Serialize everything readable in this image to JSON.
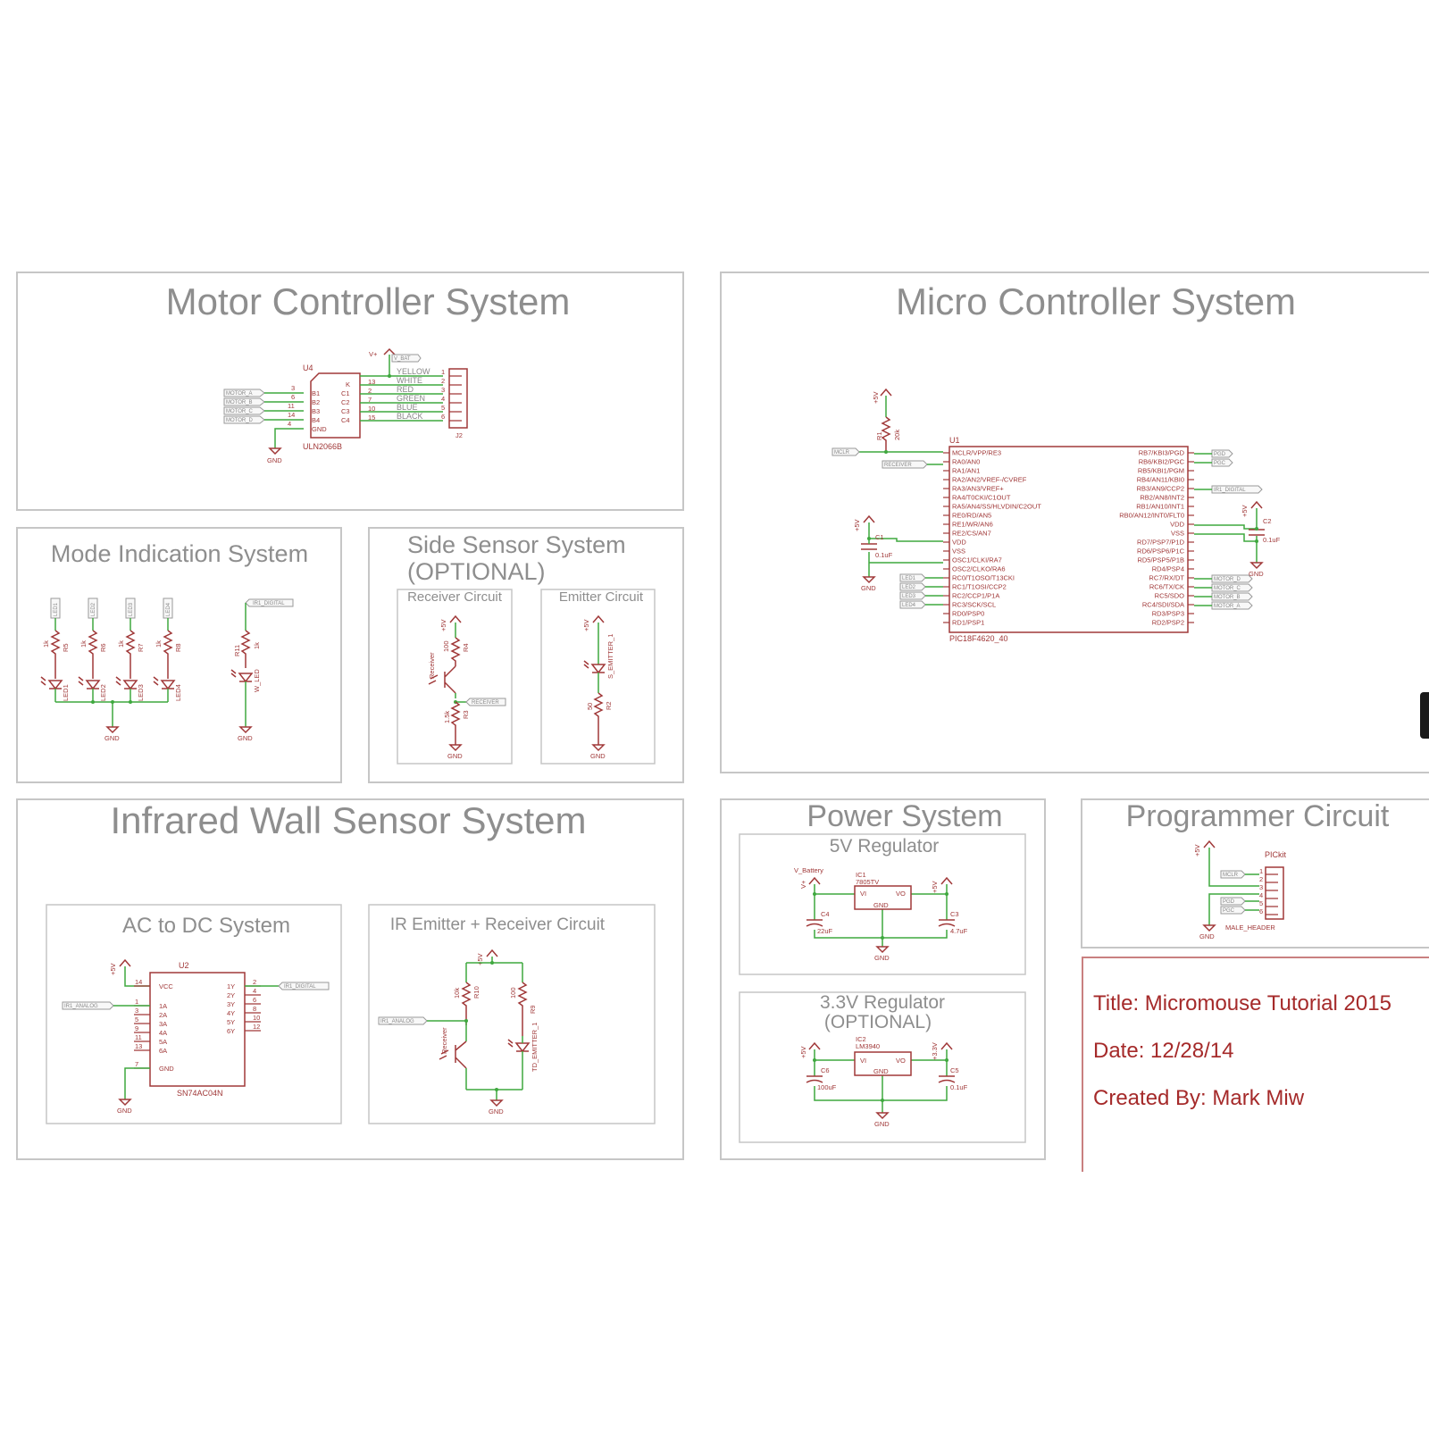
{
  "sections": {
    "motor": "Motor Controller System",
    "micro": "Micro Controller System",
    "mode": "Mode Indication System",
    "side_line1": "Side Sensor System",
    "side_line2": "(OPTIONAL)",
    "side_receiver": "Receiver Circuit",
    "side_emitter": "Emitter Circuit",
    "ir": "Infrared Wall Sensor System",
    "acdc": "AC to DC System",
    "ir_circuit": "IR Emitter + Receiver Circuit",
    "power": "Power System",
    "reg5": "5V Regulator",
    "reg33_line1": "3.3V Regulator",
    "reg33_line2": "(OPTIONAL)",
    "programmer": "Programmer Circuit"
  },
  "info": {
    "title": "Title: Micromouse Tutorial 2015",
    "date": "Date: 12/28/14",
    "author": "Created By: Mark Miw"
  },
  "motor": {
    "ref": "U4",
    "part": "ULN2066B",
    "conn": "J2",
    "vsup": "V+",
    "vflag": "V_BAT",
    "gnd": "GND",
    "inputs": [
      "MOTOR_A",
      "MOTOR_B",
      "MOTOR_C",
      "MOTOR_D"
    ],
    "in_pins": [
      "B1",
      "B2",
      "B3",
      "B4",
      "GND"
    ],
    "out_pins": [
      "K",
      "C1",
      "C2",
      "C3",
      "C4"
    ],
    "wires": [
      "YELLOW",
      "WHITE",
      "RED",
      "GREEN",
      "BLUE",
      "BLACK"
    ],
    "pin_nums_left": [
      "3",
      "6",
      "11",
      "14",
      "4"
    ],
    "pin_nums_right": [
      "13",
      "2",
      "7",
      "10",
      "15"
    ],
    "conn_nums": [
      "1",
      "2",
      "3",
      "4",
      "5",
      "6"
    ]
  },
  "micro": {
    "ref": "U1",
    "part": "PIC18F4620_40",
    "r1_ref": "R1",
    "r1_val": "20k",
    "vcc": "+5V",
    "c1_ref": "C1",
    "c1_val": "0.1uF",
    "c2_ref": "C2",
    "c2_val": "0.1uF",
    "gnd": "GND",
    "left_pins": [
      "MCLR/VPP/RE3",
      "RA0/AN0",
      "RA1/AN1",
      "RA2/AN2/VREF-/CVREF",
      "RA3/AN3/VREF+",
      "RA4/T0CKI/C1OUT",
      "RA5/AN4/SS/HLVDIN/C2OUT",
      "RE0/RD/AN5",
      "RE1/WR/AN6",
      "RE2/CS/AN7",
      "VDD",
      "VSS",
      "OSC1/CLKI/RA7",
      "OSC2/CLKO/RA6",
      "RC0/T1OSO/T13CKI",
      "RC1/T1OSI/CCP2",
      "RC2/CCP1/P1A",
      "RC3/SCK/SCL",
      "RD0/PSP0",
      "RD1/PSP1"
    ],
    "right_pins": [
      "RB7/KBI3/PGD",
      "RB6/KBI2/PGC",
      "RB5/KBI1/PGM",
      "RB4/AN11/KBI0",
      "RB3/AN9/CCP2",
      "RB2/AN8/INT2",
      "RB1/AN10/INT1",
      "RB0/AN12/INT0/FLT0",
      "VDD",
      "VSS",
      "RD7/PSP7/P1D",
      "RD6/PSP6/P1C",
      "RD5/PSP5/P1B",
      "RD4/PSP4",
      "RC7/RX/DT",
      "RC6/TX/CK",
      "RC5/SDO",
      "RC4/SDI/SDA",
      "RD3/PSP3",
      "RD2/PSP2"
    ],
    "left_flags": [
      "MCLR",
      "RECEIVER"
    ],
    "led_flags": [
      "LED1",
      "LED2",
      "LED3",
      "LED4"
    ],
    "right_flags": [
      "PGD",
      "PGC",
      "IR1_DIGITAL"
    ],
    "motor_flags": [
      "MOTOR_D",
      "MOTOR_C",
      "MOTOR_B",
      "MOTOR_A"
    ]
  },
  "mode": {
    "flags": [
      "LED1",
      "LED2",
      "LED3",
      "LED4",
      "IR1_DIGITAL"
    ],
    "res": [
      "R5",
      "R6",
      "R7",
      "R8",
      "R11"
    ],
    "res_val": "1k",
    "leds": [
      "LED1",
      "LED2",
      "LED3",
      "LED4",
      "W_LED"
    ],
    "gnd": "GND"
  },
  "side": {
    "vcc": "+5V",
    "r_top_val": "100",
    "r_top_ref": "R4",
    "rx": "Receiver",
    "rx_flag": "RECEIVER",
    "r_bot_val": "1.5k",
    "r_bot_ref": "R3",
    "gnd": "GND",
    "em_ref": "S_EMITTER_1",
    "em_r_val": "50",
    "em_r_ref": "R2"
  },
  "acdc": {
    "vcc": "+5V",
    "ref": "U2",
    "part": "SN74AC04N",
    "in_flag": "IR1_ANALOG",
    "out_flag": "IR1_DIGITAL",
    "gnd": "GND",
    "left_pins": [
      "VCC",
      "1A",
      "2A",
      "3A",
      "4A",
      "5A",
      "6A",
      "GND"
    ],
    "right_pins": [
      "1Y",
      "2Y",
      "3Y",
      "4Y",
      "5Y",
      "6Y"
    ],
    "left_nums": [
      "14",
      "1",
      "3",
      "5",
      "9",
      "11",
      "13",
      "7"
    ],
    "right_nums": [
      "2",
      "4",
      "6",
      "8",
      "10",
      "12"
    ]
  },
  "ircirc": {
    "vcc": "+5V",
    "flag": "IR1_ANALOG",
    "r1_val": "10k",
    "r1_ref": "R10",
    "r2_val": "100",
    "r2_ref": "R9",
    "rx": "Receiver",
    "em": "TD_EMITTER_1",
    "gnd": "GND"
  },
  "power": {
    "reg5": {
      "vin": "V_Battery",
      "vplus": "V+",
      "ref": "IC1",
      "part": "7805TV",
      "vi": "VI",
      "vo": "VO",
      "gnd": "GND",
      "vout": "+5V",
      "c_in_ref": "C4",
      "c_in_val": "22uF",
      "c_out_ref": "C3",
      "c_out_val": "4.7uF",
      "gnd_lbl": "GND"
    },
    "reg33": {
      "vin": "+5V",
      "ref": "IC2",
      "part": "LM3940",
      "vi": "VI",
      "vo": "VO",
      "gnd": "GND",
      "vout": "+3.3V",
      "c_in_ref": "C6",
      "c_in_val": "100uF",
      "c_out_ref": "C5",
      "c_out_val": "0.1uF",
      "gnd_lbl": "GND"
    }
  },
  "prog": {
    "vcc": "+5V",
    "name": "PICkit",
    "flags": [
      "MCLR",
      "PGD",
      "PGC"
    ],
    "pins": [
      "1",
      "2",
      "3",
      "4",
      "5",
      "6"
    ],
    "header": "MALE_HEADER",
    "gnd": "GND"
  }
}
